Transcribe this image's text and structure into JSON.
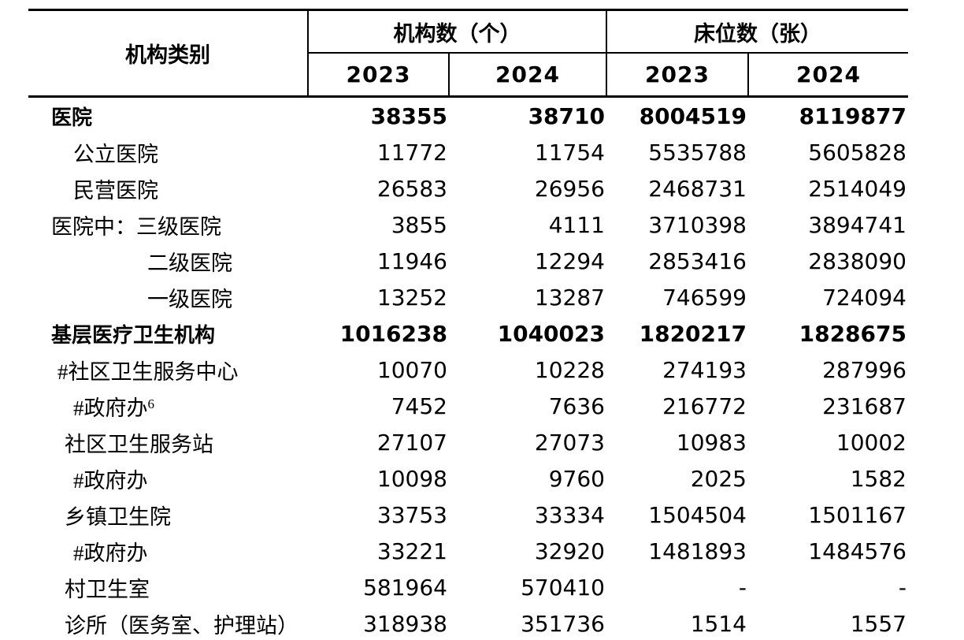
{
  "table": {
    "header": {
      "category": "机构类别",
      "group_institutions": "机构数（个）",
      "group_beds": "床位数（张）",
      "inst_year_2023": "2023",
      "inst_year_2024": "2024",
      "beds_year_2023": "2023",
      "beds_year_2024": "2024"
    },
    "rows": [
      {
        "label": "医院",
        "bold": true,
        "indent": 0,
        "inst_2023": "38355",
        "inst_2024": "38710",
        "beds_2023": "8004519",
        "beds_2024": "8119877"
      },
      {
        "label": "公立医院",
        "bold": false,
        "indent": 3,
        "inst_2023": "11772",
        "inst_2024": "11754",
        "beds_2023": "5535788",
        "beds_2024": "5605828"
      },
      {
        "label": "民营医院",
        "bold": false,
        "indent": 3,
        "inst_2023": "26583",
        "inst_2024": "26956",
        "beds_2023": "2468731",
        "beds_2024": "2514049"
      },
      {
        "label": "医院中：三级医院",
        "bold": false,
        "indent": 0,
        "inst_2023": "3855",
        "inst_2024": "4111",
        "beds_2023": "3710398",
        "beds_2024": "3894741"
      },
      {
        "label": "二级医院",
        "bold": false,
        "indent": 4,
        "inst_2023": "11946",
        "inst_2024": "12294",
        "beds_2023": "2853416",
        "beds_2024": "2838090"
      },
      {
        "label": "一级医院",
        "bold": false,
        "indent": 4,
        "inst_2023": "13252",
        "inst_2024": "13287",
        "beds_2023": "746599",
        "beds_2024": "724094"
      },
      {
        "label": "基层医疗卫生机构",
        "bold": true,
        "indent": 0,
        "inst_2023": "1016238",
        "inst_2024": "1040023",
        "beds_2023": "1820217",
        "beds_2024": "1828675"
      },
      {
        "label": "#社区卫生服务中心",
        "bold": false,
        "indent": 1,
        "inst_2023": "10070",
        "inst_2024": "10228",
        "beds_2023": "274193",
        "beds_2024": "287996"
      },
      {
        "label": "#政府办",
        "sup": "6",
        "bold": false,
        "indent": 3,
        "inst_2023": "7452",
        "inst_2024": "7636",
        "beds_2023": "216772",
        "beds_2024": "231687"
      },
      {
        "label": "社区卫生服务站",
        "bold": false,
        "indent": 2,
        "inst_2023": "27107",
        "inst_2024": "27073",
        "beds_2023": "10983",
        "beds_2024": "10002"
      },
      {
        "label": "#政府办",
        "bold": false,
        "indent": 3,
        "inst_2023": "10098",
        "inst_2024": "9760",
        "beds_2023": "2025",
        "beds_2024": "1582"
      },
      {
        "label": "乡镇卫生院",
        "bold": false,
        "indent": 2,
        "inst_2023": "33753",
        "inst_2024": "33334",
        "beds_2023": "1504504",
        "beds_2024": "1501167"
      },
      {
        "label": "#政府办",
        "bold": false,
        "indent": 3,
        "inst_2023": "33221",
        "inst_2024": "32920",
        "beds_2023": "1481893",
        "beds_2024": "1484576"
      },
      {
        "label": "村卫生室",
        "bold": false,
        "indent": 2,
        "inst_2023": "581964",
        "inst_2024": "570410",
        "beds_2023": "-",
        "beds_2024": "-"
      },
      {
        "label": "诊所（医务室、护理站）",
        "bold": false,
        "indent": 2,
        "inst_2023": "318938",
        "inst_2024": "351736",
        "beds_2023": "1514",
        "beds_2024": "1557"
      }
    ]
  }
}
